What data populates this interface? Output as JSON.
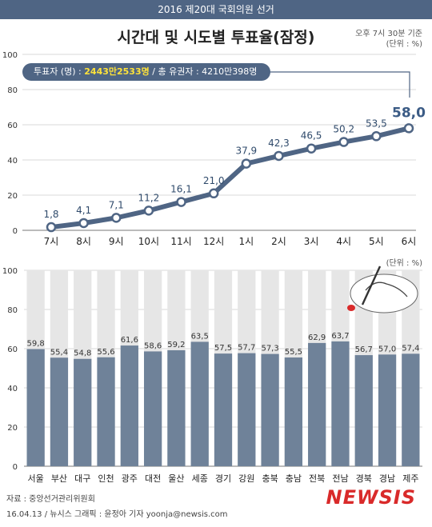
{
  "header": {
    "banner": "2016 제20대 국회의원 선거"
  },
  "title": "시간대 및 시도별 투표율(잠정)",
  "basis": {
    "time_note": "오후 7시 30분 기준",
    "unit": "(단위 : %)"
  },
  "info": {
    "voters_label": "투표자 (명) :",
    "voters_value": "2443만2533명",
    "separator": "/",
    "total_label": "총 유권자 :",
    "total_value": "4210만398명"
  },
  "unit2": "(단위 : %)",
  "source": {
    "line1": "자료 : 중앙선거관리위원회",
    "line2": "16.04.13 / 뉴시스 그래픽 : 윤정아 기자 yoonja@newsis.com"
  },
  "brand": "NEWSIS",
  "colors": {
    "banner": "#4f6584",
    "line": "#4f6584",
    "bar": "#6f8299",
    "bar_bg": "#e6e6e6",
    "brand": "#d92a2a"
  },
  "icons": {
    "hand": "hand-with-pen-icon"
  },
  "chart_data": [
    {
      "type": "line",
      "categories": [
        "7시",
        "8시",
        "9시",
        "10시",
        "11시",
        "12시",
        "1시",
        "2시",
        "3시",
        "4시",
        "5시",
        "6시"
      ],
      "values": [
        1.8,
        4.1,
        7.1,
        11.2,
        16.1,
        21.0,
        37.9,
        42.3,
        46.5,
        50.2,
        53.5,
        58.0
      ],
      "labels": [
        "1,8",
        "4,1",
        "7,1",
        "11,2",
        "16,1",
        "21,0",
        "37,9",
        "42,3",
        "46,5",
        "50,2",
        "53,5",
        "58,0"
      ],
      "ylim": [
        0,
        100
      ],
      "yticks": [
        0,
        20,
        40,
        60,
        80,
        100
      ],
      "grid": true
    },
    {
      "type": "bar",
      "categories": [
        "서울",
        "부산",
        "대구",
        "인천",
        "광주",
        "대전",
        "울산",
        "세종",
        "경기",
        "강원",
        "충북",
        "충남",
        "전북",
        "전남",
        "경북",
        "경남",
        "제주"
      ],
      "values": [
        59.8,
        55.4,
        54.8,
        55.6,
        61.6,
        58.6,
        59.2,
        63.5,
        57.5,
        57.7,
        57.3,
        55.5,
        62.9,
        63.7,
        56.7,
        57.0,
        57.4
      ],
      "labels": [
        "59,8",
        "55,4",
        "54,8",
        "55,6",
        "61,6",
        "58,6",
        "59,2",
        "63,5",
        "57,5",
        "57,7",
        "57,3",
        "55,5",
        "62,9",
        "63,7",
        "56,7",
        "57,0",
        "57,4"
      ],
      "ylim": [
        0,
        100
      ],
      "yticks": [
        0,
        20,
        40,
        60,
        80,
        100
      ],
      "grid": true
    }
  ]
}
